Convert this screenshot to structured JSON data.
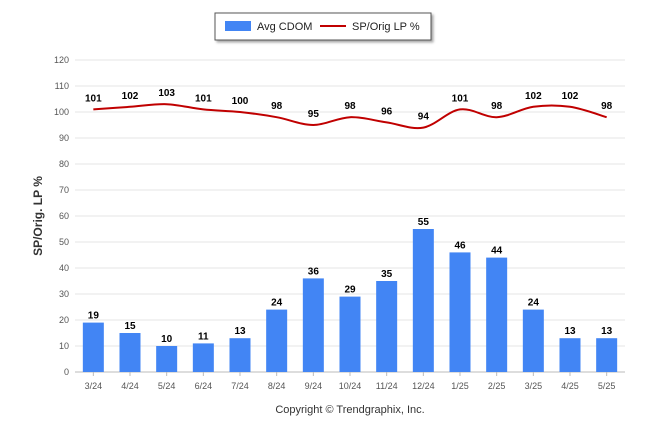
{
  "chart_data": {
    "type": "bar",
    "categories": [
      "3/24",
      "4/24",
      "5/24",
      "6/24",
      "7/24",
      "8/24",
      "9/24",
      "10/24",
      "11/24",
      "12/24",
      "1/25",
      "2/25",
      "3/25",
      "4/25",
      "5/25"
    ],
    "series": [
      {
        "name": "Avg CDOM",
        "type": "bar",
        "color": "#4285f4",
        "values": [
          19,
          15,
          10,
          11,
          13,
          24,
          36,
          29,
          35,
          55,
          46,
          44,
          24,
          13,
          13
        ]
      },
      {
        "name": "SP/Orig LP %",
        "type": "line",
        "color": "#c00000",
        "values": [
          101,
          102,
          103,
          101,
          100,
          98,
          95,
          98,
          96,
          94,
          101,
          98,
          102,
          102,
          98
        ]
      }
    ],
    "ylabel": "SP/Orig. LP %",
    "ylim": [
      0,
      120
    ],
    "yticks": [
      0,
      10,
      20,
      30,
      40,
      50,
      60,
      70,
      80,
      90,
      100,
      110,
      120
    ],
    "grid": true,
    "legend_position": "top-center",
    "credit": "Copyright © Trendgraphix, Inc."
  }
}
